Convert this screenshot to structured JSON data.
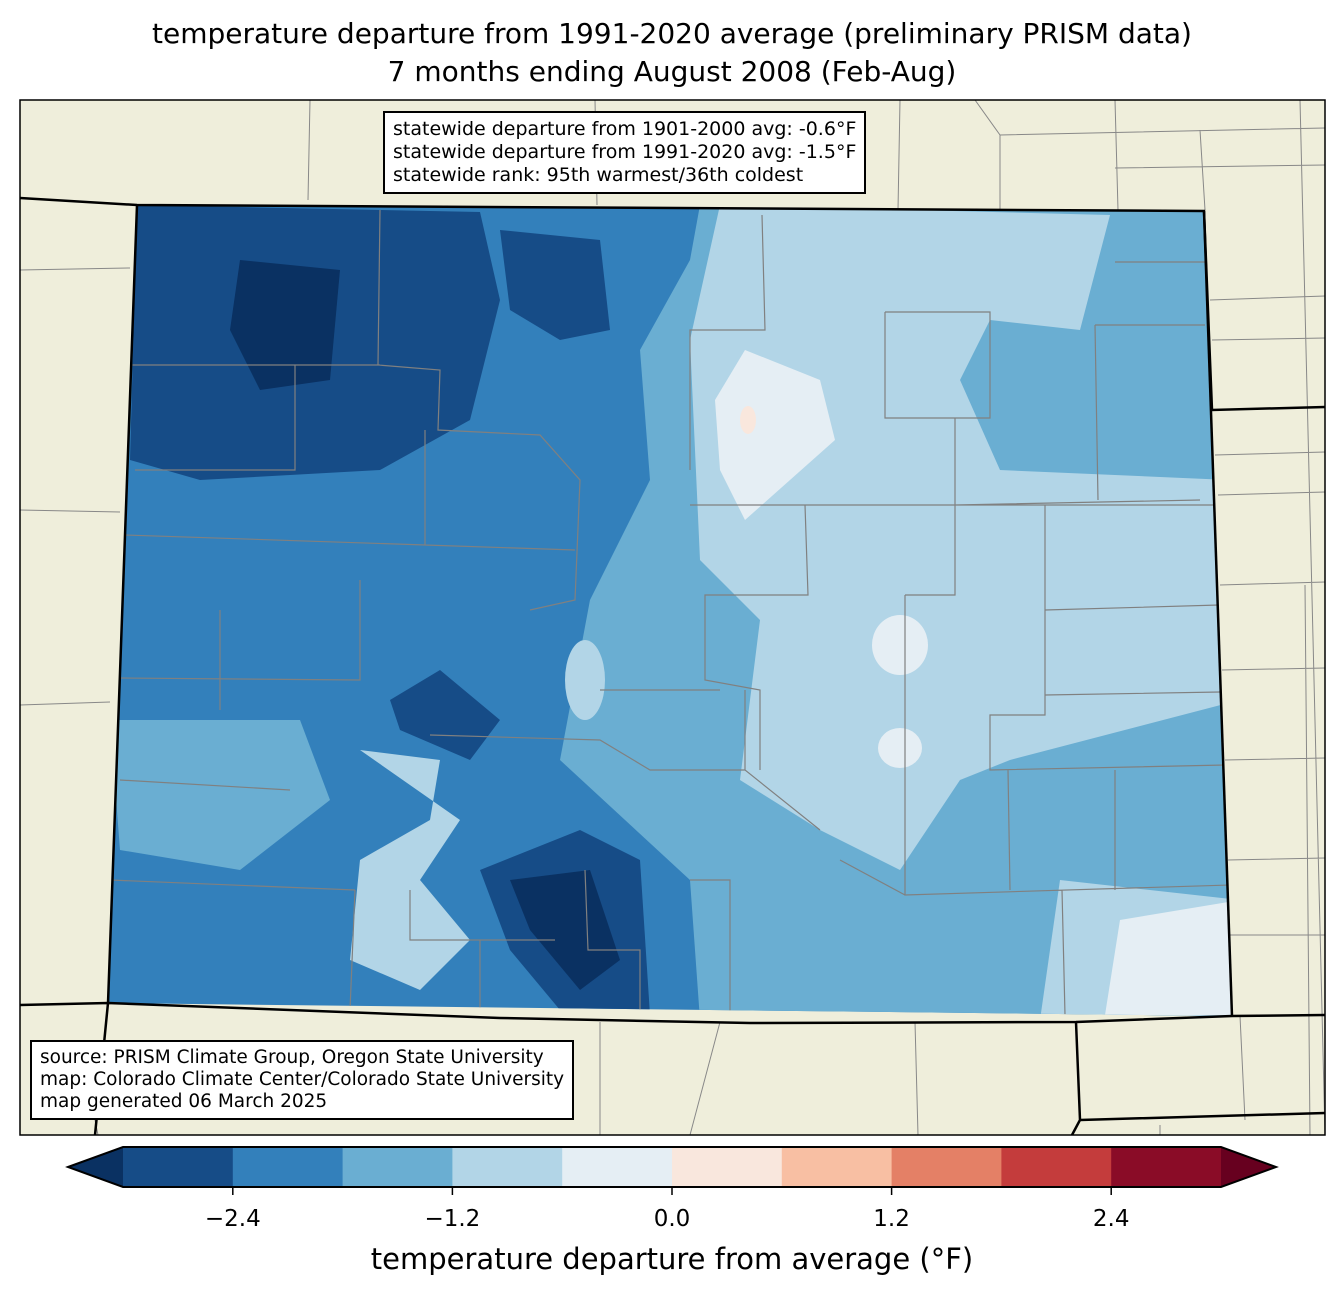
{
  "title": {
    "line1": "temperature departure from 1991-2020 average (preliminary PRISM data)",
    "line2": "7 months ending August 2008 (Feb-Aug)"
  },
  "stats_box": {
    "line1": "statewide departure from 1901-2000 avg: -0.6°F",
    "line2": "statewide departure from 1991-2020 avg: -1.5°F",
    "line3": "statewide rank: 95th warmest/36th coldest"
  },
  "source_box": {
    "line1": "source: PRISM Climate Group, Oregon State University",
    "line2": "map: Colorado Climate Center/Colorado State University",
    "line3": "map generated 06 March 2025"
  },
  "colorbar": {
    "label": "temperature departure from average (°F)",
    "range": [
      -3.0,
      3.0
    ],
    "bounds": [
      -3.0,
      -2.4,
      -1.8,
      -1.2,
      -0.6,
      0.0,
      0.6,
      1.2,
      1.8,
      2.4,
      3.0
    ],
    "colors": [
      "#164c87",
      "#3380bb",
      "#6aaed2",
      "#b2d5e7",
      "#e5eef4",
      "#f9e7dd",
      "#f8bfa3",
      "#e48066",
      "#c43c3c",
      "#8a0c27"
    ],
    "under_color": "#0a3162",
    "over_color": "#67001f",
    "ticks": [
      "−2.4",
      "−1.2",
      "0.0",
      "1.2",
      "2.4"
    ],
    "tick_values": [
      -2.4,
      -1.2,
      0.0,
      1.2,
      2.4
    ]
  },
  "colors": {
    "land": "#efeedb",
    "county_line": "#808080",
    "state_line": "#000000"
  }
}
